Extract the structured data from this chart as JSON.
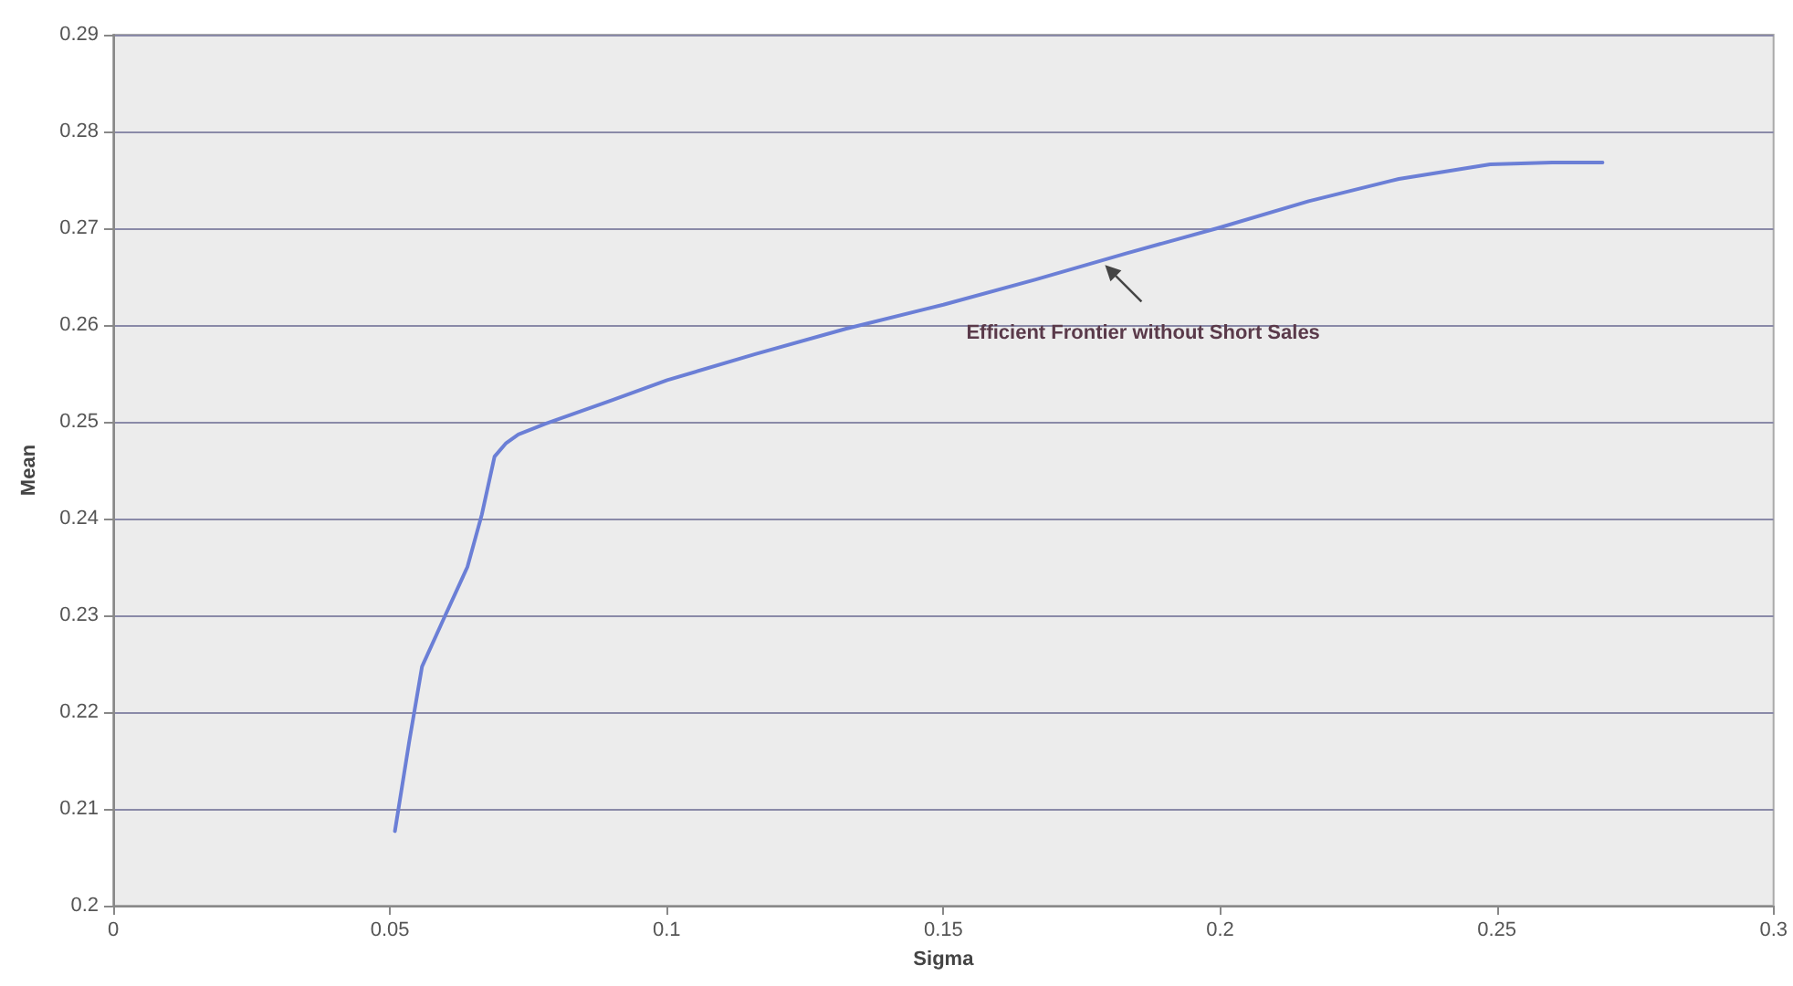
{
  "chart_data": {
    "type": "line",
    "xlabel": "Sigma",
    "ylabel": "Mean",
    "color": "#6b7fd6",
    "x": [
      0.0509,
      0.0535,
      0.0558,
      0.06,
      0.064,
      0.0666,
      0.0689,
      0.071,
      0.0732,
      0.0781,
      0.09,
      0.1001,
      0.116,
      0.1323,
      0.15,
      0.1667,
      0.183,
      0.1995,
      0.216,
      0.2323,
      0.2488,
      0.26,
      0.2691
    ],
    "values": [
      0.2077,
      0.217,
      0.2247,
      0.23,
      0.235,
      0.2404,
      0.2464,
      0.2478,
      0.2487,
      0.2498,
      0.2522,
      0.2543,
      0.257,
      0.2596,
      0.2621,
      0.2647,
      0.2674,
      0.27,
      0.2728,
      0.2751,
      0.2766,
      0.2768,
      0.2768
    ],
    "xlim": [
      0,
      0.3
    ],
    "xticks": [
      0,
      0.05,
      0.1,
      0.15,
      0.2,
      0.25,
      0.3
    ],
    "ylim": [
      0.2,
      0.29
    ],
    "yticks": [
      0.2,
      0.21,
      0.22,
      0.23,
      0.24,
      0.25,
      0.26,
      0.27,
      0.28,
      0.29
    ],
    "grid": "y",
    "marker": "none",
    "line_style": "solid",
    "annotations": [
      {
        "text": "Efficient Frontier without Short Sales",
        "x": 0.1792,
        "y": 0.2662
      }
    ]
  }
}
